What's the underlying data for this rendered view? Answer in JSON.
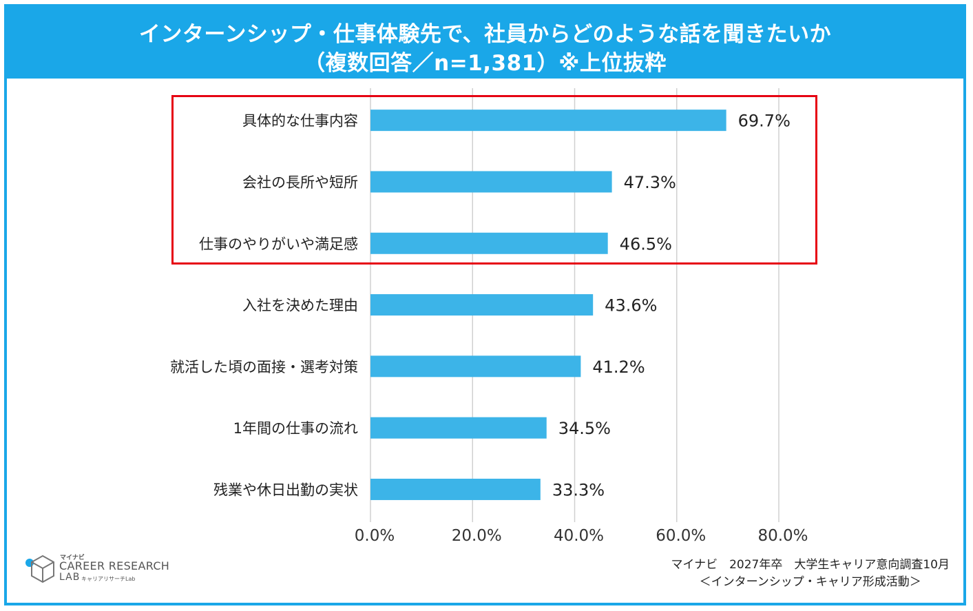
{
  "header": {
    "line1": "インターンシップ・仕事体験先で、社員からどのような話を聞きたいか",
    "line2": "（複数回答／n=1,381）※上位抜粋"
  },
  "chart_data": {
    "type": "bar",
    "orientation": "horizontal",
    "categories": [
      "具体的な仕事内容",
      "会社の長所や短所",
      "仕事のやりがいや満足感",
      "入社を決めた理由",
      "就活した頃の面接・選考対策",
      "1年間の仕事の流れ",
      "残業や休日出勤の実状"
    ],
    "values": [
      69.7,
      47.3,
      46.5,
      43.6,
      41.2,
      34.5,
      33.3
    ],
    "value_labels": [
      "69.7%",
      "47.3%",
      "46.5%",
      "43.6%",
      "41.2%",
      "34.5%",
      "33.3%"
    ],
    "xlim": [
      0,
      80
    ],
    "xticks": [
      0,
      20,
      40,
      60,
      80
    ],
    "xtick_labels": [
      "0.0%",
      "20.0%",
      "40.0%",
      "60.0%",
      "80.0%"
    ],
    "grid": true,
    "highlighted_categories": [
      0,
      1,
      2
    ],
    "bar_color": "#3cb4e8",
    "highlight_color": "#e60012"
  },
  "colors": {
    "accent": "#1aa7e8",
    "bar": "#3cb4e8",
    "highlight": "#e60012"
  },
  "logo": {
    "kana_top": "マイナビ",
    "line1": "CAREER RESEARCH",
    "line2": "LAB",
    "kana_bottom": "キャリアリサーチLab",
    "icon": "cube-logo-icon"
  },
  "source": {
    "line1": "マイナビ　2027年卒　大学生キャリア意向調査10月",
    "line2": "＜インターンシップ・キャリア形成活動＞"
  }
}
